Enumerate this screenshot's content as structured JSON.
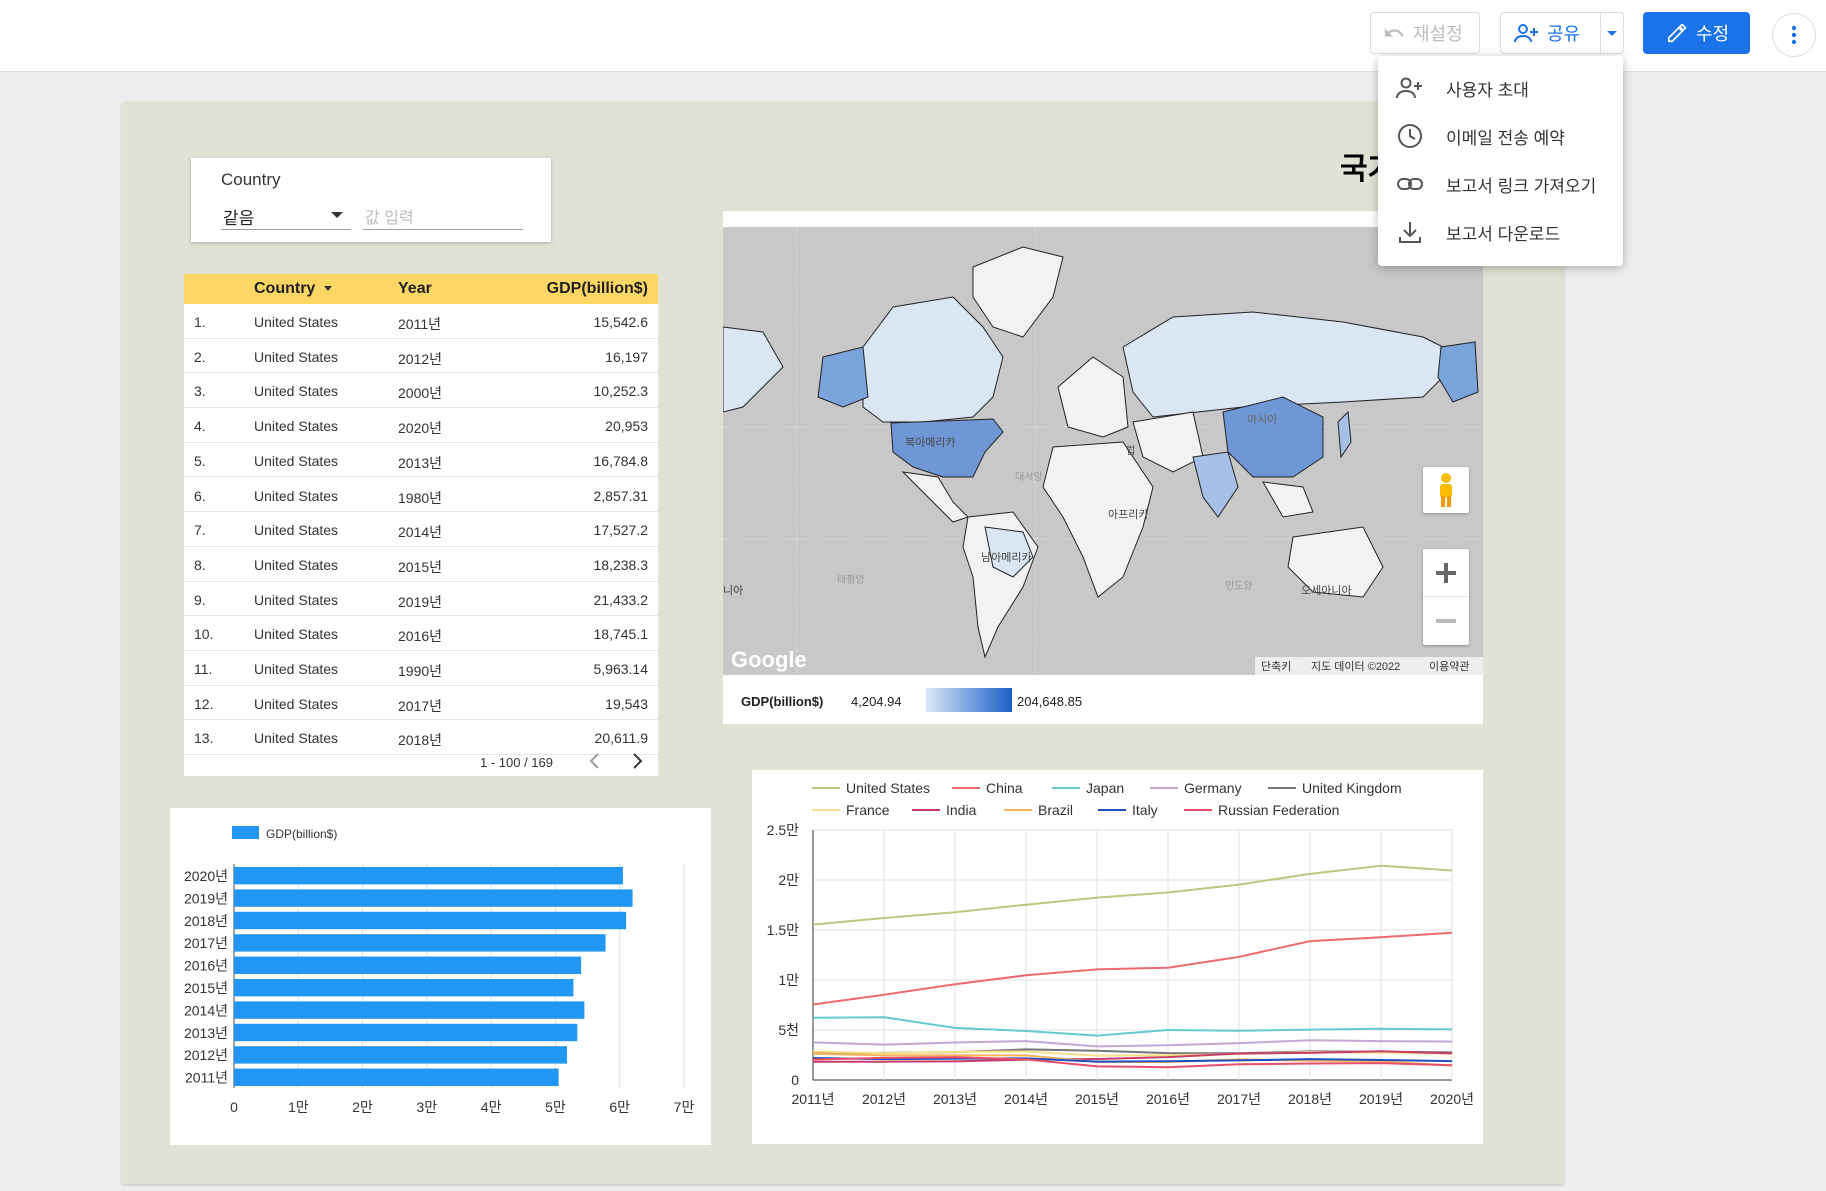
{
  "toolbar": {
    "reset_label": "재설정",
    "share_label": "공유",
    "edit_label": "수정"
  },
  "share_menu": {
    "items": [
      {
        "label": "사용자 초대",
        "icon": "person-add-icon"
      },
      {
        "label": "이메일 전송 예약",
        "icon": "clock-icon"
      },
      {
        "label": "보고서 링크 가져오기",
        "icon": "link-icon"
      },
      {
        "label": "보고서 다운로드",
        "icon": "download-icon"
      }
    ]
  },
  "report": {
    "title_partial": "국가"
  },
  "filter": {
    "label": "Country",
    "operator": "같음",
    "value_placeholder": "값 입력"
  },
  "table": {
    "headers": {
      "country": "Country",
      "year": "Year",
      "gdp": "GDP(billion$)"
    },
    "rows": [
      {
        "idx": "1.",
        "country": "United States",
        "year": "2011년",
        "gdp": "15,542.6"
      },
      {
        "idx": "2.",
        "country": "United States",
        "year": "2012년",
        "gdp": "16,197"
      },
      {
        "idx": "3.",
        "country": "United States",
        "year": "2000년",
        "gdp": "10,252.3"
      },
      {
        "idx": "4.",
        "country": "United States",
        "year": "2020년",
        "gdp": "20,953"
      },
      {
        "idx": "5.",
        "country": "United States",
        "year": "2013년",
        "gdp": "16,784.8"
      },
      {
        "idx": "6.",
        "country": "United States",
        "year": "1980년",
        "gdp": "2,857.31"
      },
      {
        "idx": "7.",
        "country": "United States",
        "year": "2014년",
        "gdp": "17,527.2"
      },
      {
        "idx": "8.",
        "country": "United States",
        "year": "2015년",
        "gdp": "18,238.3"
      },
      {
        "idx": "9.",
        "country": "United States",
        "year": "2019년",
        "gdp": "21,433.2"
      },
      {
        "idx": "10.",
        "country": "United States",
        "year": "2016년",
        "gdp": "18,745.1"
      },
      {
        "idx": "11.",
        "country": "United States",
        "year": "1990년",
        "gdp": "5,963.14"
      },
      {
        "idx": "12.",
        "country": "United States",
        "year": "2017년",
        "gdp": "19,543"
      },
      {
        "idx": "13.",
        "country": "United States",
        "year": "2018년",
        "gdp": "20,611.9"
      }
    ],
    "pagination": "1 - 100 / 169"
  },
  "map": {
    "labels": {
      "north_america": "북아메리카",
      "south_america": "남아메리카",
      "africa": "아프리카",
      "asia": "아시아",
      "europe": "럽",
      "oceania": "오세아니아",
      "atlantic": "대서양",
      "pacific": "태평양",
      "indian": "인도양",
      "left_edge": "니아"
    },
    "google_logo": "Google",
    "footer": {
      "shortcuts": "단축키",
      "data": "지도 데이터 ©2022",
      "terms": "이용약관"
    },
    "legend": {
      "metric": "GDP(billion$)",
      "min": "4,204.94",
      "max": "204,648.85",
      "color_min": "#dbe8f8",
      "color_max": "#1a5fc7"
    }
  },
  "chart_data": [
    {
      "type": "bar",
      "orientation": "horizontal",
      "legend": "GDP(billion$)",
      "color": "#2196f3",
      "categories": [
        "2020년",
        "2019년",
        "2018년",
        "2017년",
        "2016년",
        "2015년",
        "2014년",
        "2013년",
        "2012년",
        "2011년"
      ],
      "values": [
        60500,
        62000,
        61000,
        57800,
        54000,
        52800,
        54500,
        53400,
        51800,
        50500
      ],
      "xlim": [
        0,
        70000
      ],
      "xticks": [
        "0",
        "1만",
        "2만",
        "3만",
        "4만",
        "5만",
        "6만",
        "7만"
      ]
    },
    {
      "type": "line",
      "categories": [
        "2011년",
        "2012년",
        "2013년",
        "2014년",
        "2015년",
        "2016년",
        "2017년",
        "2018년",
        "2019년",
        "2020년"
      ],
      "ylim": [
        0,
        25000
      ],
      "yticks": [
        "0",
        "5천",
        "1만",
        "1.5만",
        "2만",
        "2.5만"
      ],
      "series": [
        {
          "name": "United States",
          "color": "#b9c97f",
          "values": [
            15543,
            16197,
            16785,
            17527,
            18238,
            18745,
            19543,
            20612,
            21433,
            20953
          ]
        },
        {
          "name": "China",
          "color": "#ef6b6b",
          "values": [
            7552,
            8532,
            9570,
            10475,
            11062,
            11233,
            12310,
            13895,
            14280,
            14723
          ]
        },
        {
          "name": "Japan",
          "color": "#66c8d2",
          "values": [
            6233,
            6272,
            5212,
            4897,
            4445,
            5004,
            4931,
            5037,
            5123,
            5058
          ]
        },
        {
          "name": "Germany",
          "color": "#c4a8d3",
          "values": [
            3758,
            3544,
            3753,
            3891,
            3357,
            3469,
            3690,
            3975,
            3889,
            3846
          ]
        },
        {
          "name": "United Kingdom",
          "color": "#757575",
          "values": [
            2663,
            2707,
            2785,
            3065,
            2929,
            2694,
            2666,
            2861,
            2833,
            2760
          ]
        },
        {
          "name": "France",
          "color": "#f7e08a",
          "values": [
            2865,
            2683,
            2811,
            2852,
            2439,
            2472,
            2595,
            2788,
            2716,
            2630
          ]
        },
        {
          "name": "India",
          "color": "#c83e6b",
          "values": [
            1823,
            1828,
            1857,
            2039,
            2104,
            2295,
            2652,
            2713,
            2870,
            2660
          ]
        },
        {
          "name": "Brazil",
          "color": "#f5b35b",
          "values": [
            2616,
            2465,
            2473,
            2456,
            1802,
            1796,
            2063,
            1917,
            1873,
            1445
          ]
        },
        {
          "name": "Italy",
          "color": "#1f4fbf",
          "values": [
            2196,
            2087,
            2141,
            2162,
            1836,
            1877,
            1961,
            2092,
            2004,
            1887
          ]
        },
        {
          "name": "Russian Federation",
          "color": "#e8506a",
          "values": [
            2046,
            2208,
            2292,
            2059,
            1364,
            1277,
            1575,
            1653,
            1693,
            1483
          ]
        }
      ]
    }
  ]
}
